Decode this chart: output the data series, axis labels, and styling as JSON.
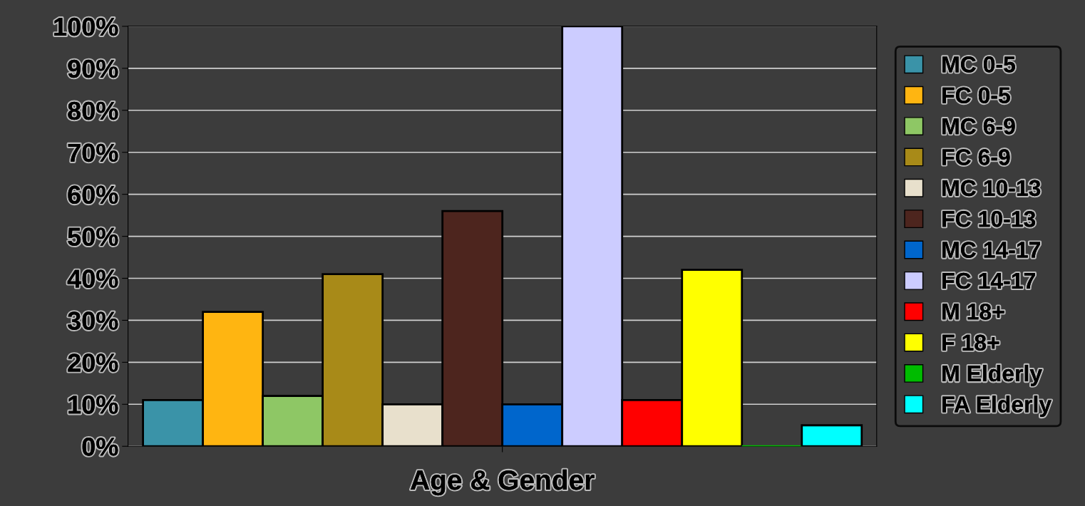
{
  "chart_data": {
    "type": "bar",
    "xlabel": "Age & Gender",
    "categories": [
      null
    ],
    "series": [
      {
        "name": "MC 0-5",
        "color": "#3a93a8",
        "values": [
          11
        ]
      },
      {
        "name": "FC 0-5",
        "color": "#ffb511",
        "values": [
          32
        ]
      },
      {
        "name": "MC 6-9",
        "color": "#8ec765",
        "values": [
          12
        ]
      },
      {
        "name": "FC 6-9",
        "color": "#a88a18",
        "values": [
          41
        ]
      },
      {
        "name": "MC 10-13",
        "color": "#e8e0cc",
        "values": [
          10
        ]
      },
      {
        "name": "FC 10-13",
        "color": "#4d251e",
        "values": [
          56
        ]
      },
      {
        "name": "MC 14-17",
        "color": "#0066cc",
        "values": [
          10
        ]
      },
      {
        "name": "FC 14-17",
        "color": "#ccccff",
        "values": [
          100
        ]
      },
      {
        "name": "M 18+",
        "color": "#ff0000",
        "values": [
          11
        ]
      },
      {
        "name": "F 18+",
        "color": "#ffff00",
        "values": [
          42
        ]
      },
      {
        "name": "M Elderly",
        "color": "#00bb00",
        "values": [
          0
        ]
      },
      {
        "name": "FA Elderly",
        "color": "#00ffff",
        "values": [
          5
        ]
      }
    ],
    "ylim": [
      0,
      100
    ],
    "yticks": [
      {
        "value": 0,
        "label": "0%"
      },
      {
        "value": 10,
        "label": "10%"
      },
      {
        "value": 20,
        "label": "20%"
      },
      {
        "value": 30,
        "label": "30%"
      },
      {
        "value": 40,
        "label": "40%"
      },
      {
        "value": 50,
        "label": "50%"
      },
      {
        "value": 60,
        "label": "60%"
      },
      {
        "value": 70,
        "label": "70%"
      },
      {
        "value": 80,
        "label": "80%"
      },
      {
        "value": 90,
        "label": "90%"
      },
      {
        "value": 100,
        "label": "100%"
      }
    ],
    "grid": "y",
    "legend": "right"
  }
}
